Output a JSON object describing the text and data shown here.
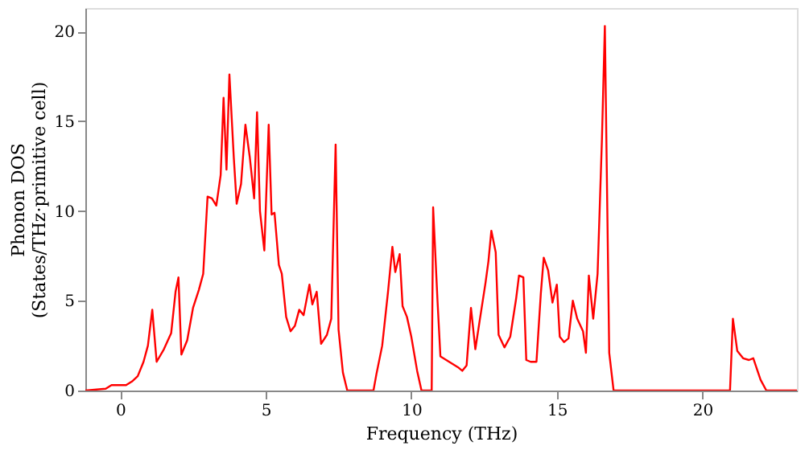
{
  "chart_data": {
    "type": "line",
    "xlabel": "Frequency (THz)",
    "ylabel": "Phonon DOS\n(States/THz·primitive cell)",
    "xlim": [
      -1.2,
      23.25
    ],
    "ylim": [
      0,
      21.3
    ],
    "xticks": [
      0,
      5,
      10,
      15,
      20
    ],
    "yticks": [
      0,
      5,
      10,
      15,
      20
    ],
    "grid": false,
    "legend": false,
    "x": [
      -1.2,
      -0.5,
      -0.3,
      0.2,
      0.4,
      0.6,
      0.8,
      0.95,
      1.1,
      1.25,
      1.5,
      1.75,
      1.9,
      2.0,
      2.1,
      2.3,
      2.5,
      2.7,
      2.85,
      3.0,
      3.15,
      3.3,
      3.45,
      3.55,
      3.65,
      3.75,
      3.9,
      4.0,
      4.15,
      4.3,
      4.45,
      4.6,
      4.7,
      4.8,
      4.95,
      5.1,
      5.2,
      5.3,
      5.45,
      5.55,
      5.7,
      5.85,
      6.0,
      6.15,
      6.3,
      6.5,
      6.6,
      6.75,
      6.9,
      7.1,
      7.25,
      7.4,
      7.5,
      7.65,
      7.8,
      8.7,
      8.8,
      9.0,
      9.2,
      9.35,
      9.45,
      9.6,
      9.7,
      9.85,
      10.0,
      10.2,
      10.35,
      10.7,
      10.75,
      10.9,
      11.0,
      11.2,
      11.4,
      11.6,
      11.75,
      11.9,
      12.05,
      12.2,
      12.35,
      12.55,
      12.65,
      12.75,
      12.9,
      13.0,
      13.2,
      13.4,
      13.6,
      13.7,
      13.85,
      13.95,
      14.1,
      14.3,
      14.45,
      14.55,
      14.7,
      14.85,
      15.0,
      15.1,
      15.25,
      15.4,
      15.55,
      15.7,
      15.9,
      16.0,
      16.1,
      16.25,
      16.4,
      16.55,
      16.65,
      16.8,
      16.95,
      20.95,
      21.05,
      21.2,
      21.4,
      21.6,
      21.75,
      22.0,
      22.2,
      23.25
    ],
    "series": [
      {
        "color": "#ff0000",
        "values": [
          0.0,
          0.1,
          0.3,
          0.3,
          0.5,
          0.8,
          1.6,
          2.5,
          4.5,
          1.6,
          2.3,
          3.2,
          5.5,
          6.3,
          2.0,
          2.8,
          4.6,
          5.6,
          6.5,
          10.8,
          10.7,
          10.3,
          12.0,
          16.3,
          12.3,
          17.6,
          13.0,
          10.4,
          11.5,
          14.8,
          13.0,
          10.7,
          15.5,
          10.0,
          7.8,
          14.8,
          9.8,
          9.9,
          7.0,
          6.5,
          4.1,
          3.3,
          3.6,
          4.5,
          4.2,
          5.9,
          4.8,
          5.5,
          2.6,
          3.1,
          4.0,
          13.7,
          3.4,
          1.0,
          0,
          0,
          0.9,
          2.5,
          5.5,
          8.0,
          6.6,
          7.6,
          4.7,
          4.1,
          3.0,
          1.1,
          0,
          0,
          10.2,
          5.0,
          1.9,
          1.7,
          1.5,
          1.3,
          1.1,
          1.4,
          4.6,
          2.3,
          3.9,
          6.0,
          7.2,
          8.9,
          7.7,
          3.1,
          2.4,
          3.0,
          5.1,
          6.4,
          6.3,
          1.7,
          1.6,
          1.6,
          5.4,
          7.4,
          6.7,
          4.9,
          5.9,
          3.0,
          2.7,
          2.9,
          5.0,
          4.0,
          3.3,
          2.1,
          6.4,
          4.0,
          6.5,
          14.0,
          20.3,
          2.1,
          0,
          0,
          4.0,
          2.2,
          1.8,
          1.7,
          1.8,
          0.6,
          0,
          0
        ]
      }
    ]
  }
}
